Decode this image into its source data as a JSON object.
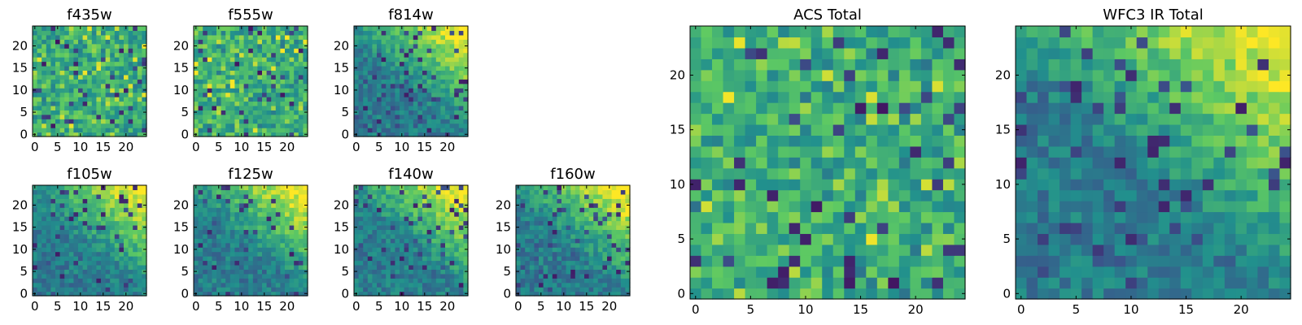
{
  "chart_data": [
    {
      "type": "heatmap",
      "title": "f435w",
      "colormap": "viridis",
      "grid_size": 25,
      "xlim": [
        -0.5,
        24.5
      ],
      "ylim": [
        -0.5,
        24.5
      ],
      "xticks": [
        0,
        5,
        10,
        15,
        20
      ],
      "yticks": [
        0,
        5,
        10,
        15,
        20
      ],
      "style": "noisy"
    },
    {
      "type": "heatmap",
      "title": "f555w",
      "colormap": "viridis",
      "grid_size": 25,
      "xlim": [
        -0.5,
        24.5
      ],
      "ylim": [
        -0.5,
        24.5
      ],
      "xticks": [
        0,
        5,
        10,
        15,
        20
      ],
      "yticks": [
        0,
        5,
        10,
        15,
        20
      ],
      "style": "noisy"
    },
    {
      "type": "heatmap",
      "title": "f814w",
      "colormap": "viridis",
      "grid_size": 25,
      "xlim": [
        -0.5,
        24.5
      ],
      "ylim": [
        -0.5,
        24.5
      ],
      "xticks": [
        0,
        5,
        10,
        15,
        20
      ],
      "yticks": [
        0,
        5,
        10,
        15,
        20
      ],
      "style": "gradient"
    },
    {
      "type": "heatmap",
      "title": "f105w",
      "colormap": "viridis",
      "grid_size": 25,
      "xlim": [
        -0.5,
        24.5
      ],
      "ylim": [
        -0.5,
        24.5
      ],
      "xticks": [
        0,
        5,
        10,
        15,
        20
      ],
      "yticks": [
        0,
        5,
        10,
        15,
        20
      ],
      "style": "gradient"
    },
    {
      "type": "heatmap",
      "title": "f125w",
      "colormap": "viridis",
      "grid_size": 25,
      "xlim": [
        -0.5,
        24.5
      ],
      "ylim": [
        -0.5,
        24.5
      ],
      "xticks": [
        0,
        5,
        10,
        15,
        20
      ],
      "yticks": [
        0,
        5,
        10,
        15,
        20
      ],
      "style": "gradient"
    },
    {
      "type": "heatmap",
      "title": "f140w",
      "colormap": "viridis",
      "grid_size": 25,
      "xlim": [
        -0.5,
        24.5
      ],
      "ylim": [
        -0.5,
        24.5
      ],
      "xticks": [
        0,
        5,
        10,
        15,
        20
      ],
      "yticks": [
        0,
        5,
        10,
        15,
        20
      ],
      "style": "gradient"
    },
    {
      "type": "heatmap",
      "title": "f160w",
      "colormap": "viridis",
      "grid_size": 25,
      "xlim": [
        -0.5,
        24.5
      ],
      "ylim": [
        -0.5,
        24.5
      ],
      "xticks": [
        0,
        5,
        10,
        15,
        20
      ],
      "yticks": [
        0,
        5,
        10,
        15,
        20
      ],
      "style": "gradient"
    },
    {
      "type": "heatmap",
      "title": "ACS Total",
      "colormap": "viridis",
      "grid_size": 25,
      "xlim": [
        -0.5,
        24.5
      ],
      "ylim": [
        -0.5,
        24.5
      ],
      "xticks": [
        0,
        5,
        10,
        15,
        20
      ],
      "yticks": [
        0,
        5,
        10,
        15,
        20
      ],
      "style": "noisy"
    },
    {
      "type": "heatmap",
      "title": "WFC3 IR Total",
      "colormap": "viridis",
      "grid_size": 25,
      "xlim": [
        -0.5,
        24.5
      ],
      "ylim": [
        -0.5,
        24.5
      ],
      "xticks": [
        0,
        5,
        10,
        15,
        20
      ],
      "yticks": [
        0,
        5,
        10,
        15,
        20
      ],
      "style": "gradient"
    }
  ],
  "colors": {
    "viridis_stops": [
      "#440154",
      "#3b528b",
      "#21908d",
      "#5dc963",
      "#fde725"
    ],
    "axis": "#000000"
  }
}
